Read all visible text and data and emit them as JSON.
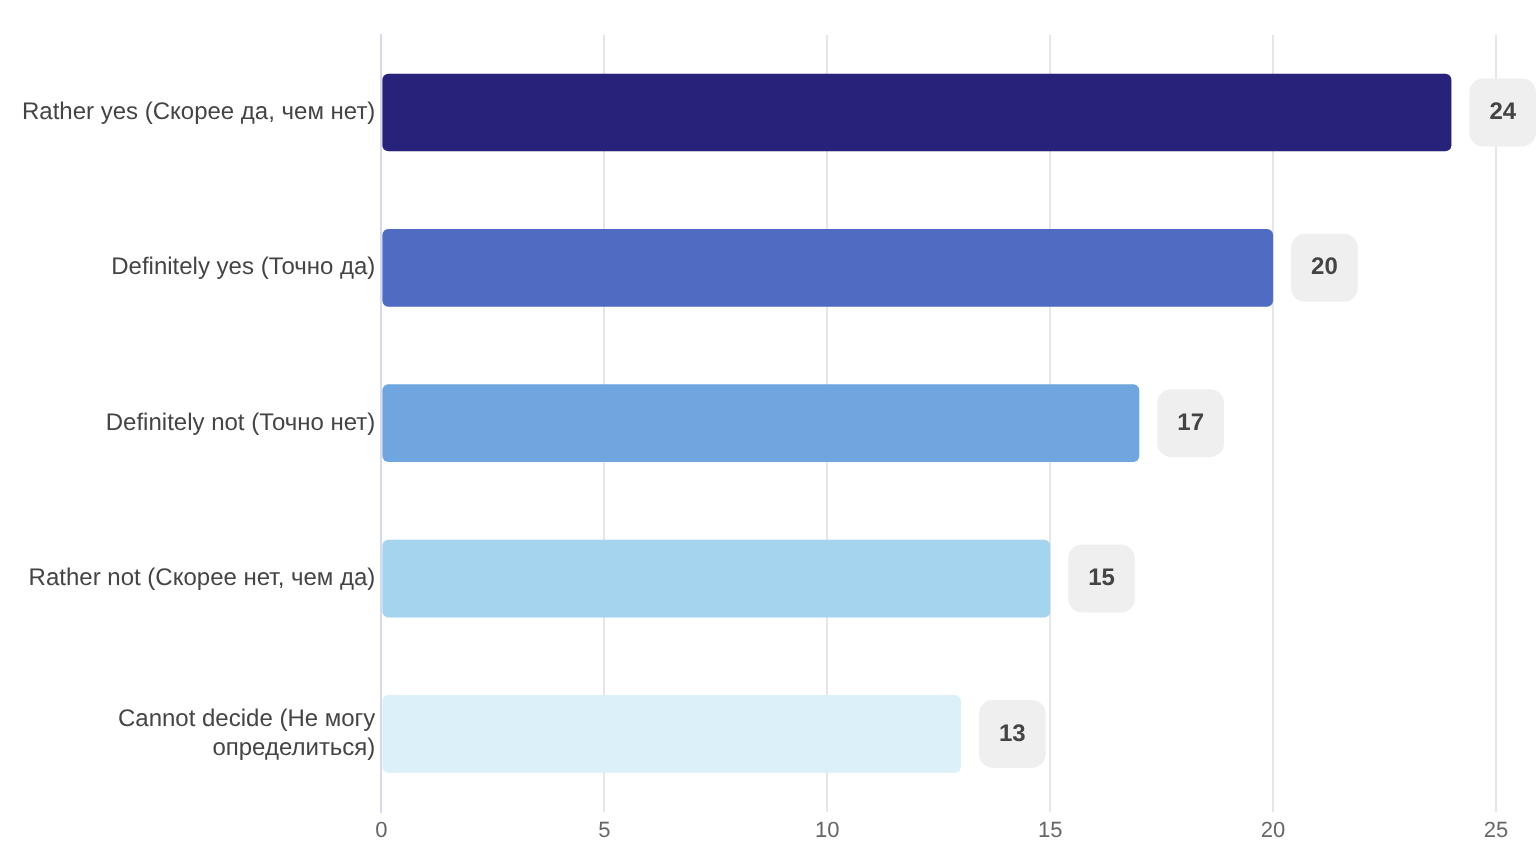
{
  "chart_data": {
    "type": "bar",
    "orientation": "horizontal",
    "categories": [
      "Rather yes (Скорее да, чем нет)",
      "Definitely yes (Точно да)",
      "Definitely not (Точно нет)",
      "Rather not (Скорее нет, чем да)",
      "Cannot decide (Не могу определиться)"
    ],
    "values": [
      24,
      20,
      17,
      15,
      13
    ],
    "colors": [
      "#27237a",
      "#4f6bc2",
      "#70a6e0",
      "#a4d4ee",
      "#dcf0f9"
    ],
    "xlim": [
      0,
      25
    ],
    "xticks": [
      0,
      5,
      10,
      15,
      20,
      25
    ],
    "grid": "x",
    "legend": false,
    "data_labels": true
  }
}
